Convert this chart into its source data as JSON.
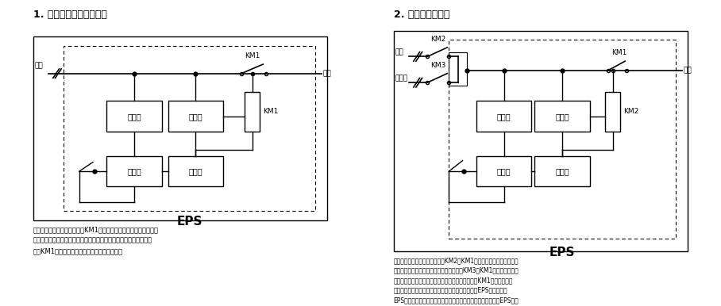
{
  "title1": "1. 单电源双输入结构框图",
  "title2": "2. 双电源结构框图",
  "eps_label": "EPS",
  "desc1": "说明：当有市电时，市电通过KM1输出，同时充电器对免维护蓄电池\n自动充电。当控制器检测到市电停电或电压过低、过高时，逆变器工\n作使KM1切换至应急输出状态向负载提供电能。",
  "desc2": "说明：在正常情况下，市电通过KM2、KM1输入，同时充电器对免维护\n蓄电池充电。当市电停电，备用电投入通过KM3、KM1输出，只有当常\n用和备用电同时停电时通过控制器控制逆变器工作使KM1切换到应急输\n出状态向负载提供电能。但备用电投入的时间大于本EPS切换时，本\nEPS先投入，待备用电来时，再切换退出。此方式的互投装置在EPS中。",
  "bg_color": "#ffffff"
}
